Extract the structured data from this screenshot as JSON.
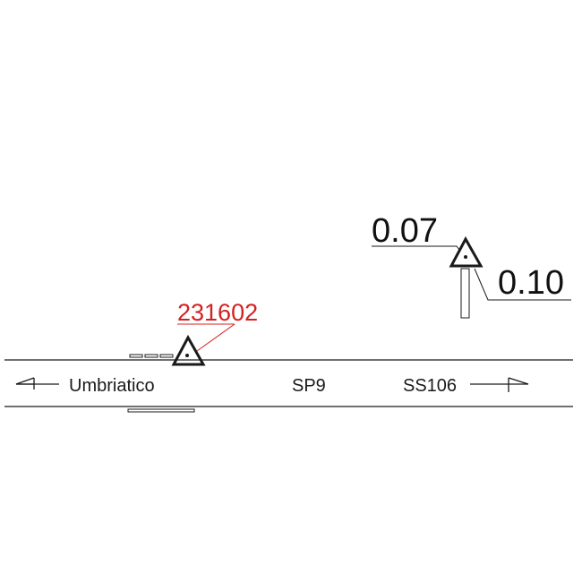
{
  "colors": {
    "line": "#1a1a1a",
    "label_red": "#d42020"
  },
  "road": {
    "left_direction": "Umbriatico",
    "road_name": "SP9",
    "right_direction": "SS106",
    "left_arrow_icon": "arrow-left-icon",
    "right_arrow_icon": "arrow-right-icon"
  },
  "markers": [
    {
      "id_label": "231602",
      "symbol": "triangle-dot-icon"
    },
    {
      "left_value": "0.07",
      "right_value": "0.10",
      "symbol": "triangle-dot-icon"
    }
  ]
}
